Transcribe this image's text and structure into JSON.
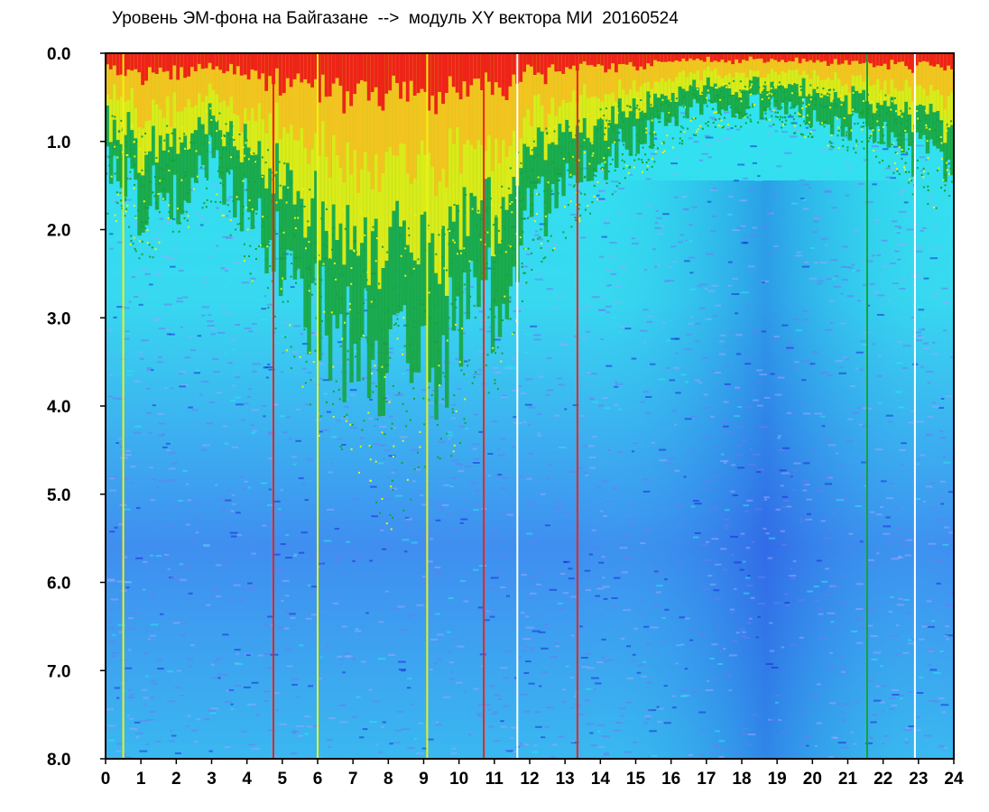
{
  "title": "Уровень ЭМ-фона на Байгазане  -->  модуль XY вектора МИ  20160524",
  "chart_data": {
    "type": "heatmap",
    "title": "Уровень ЭМ-фона на Байгазане  -->  модуль XY вектора МИ  20160524",
    "xlabel": "",
    "ylabel": "",
    "x_ticks": [
      "0",
      "1",
      "2",
      "3",
      "4",
      "5",
      "6",
      "7",
      "8",
      "9",
      "10",
      "11",
      "12",
      "13",
      "14",
      "15",
      "16",
      "17",
      "18",
      "19",
      "20",
      "21",
      "22",
      "23",
      "24"
    ],
    "y_ticks": [
      "0.0",
      "1.0",
      "2.0",
      "3.0",
      "4.0",
      "5.0",
      "6.0",
      "7.0",
      "8.0"
    ],
    "xlim": [
      0,
      24
    ],
    "ylim": [
      8.0,
      0.0
    ],
    "y_inverted": true,
    "grid": false,
    "colors": [
      "#1a2ad8",
      "#6c7cf0",
      "#9aa8ff",
      "#2ee6ee",
      "#16a336",
      "#eef214",
      "#f4c020",
      "#ee2418"
    ],
    "activity_profile": [
      {
        "hour": 0,
        "level": 1.3
      },
      {
        "hour": 1,
        "level": 1.7
      },
      {
        "hour": 2,
        "level": 1.6
      },
      {
        "hour": 3,
        "level": 1.2
      },
      {
        "hour": 4,
        "level": 1.8
      },
      {
        "hour": 5,
        "level": 2.4
      },
      {
        "hour": 6,
        "level": 3.1
      },
      {
        "hour": 7,
        "level": 3.3
      },
      {
        "hour": 8,
        "level": 3.9
      },
      {
        "hour": 9,
        "level": 3.5
      },
      {
        "hour": 10,
        "level": 3.2
      },
      {
        "hour": 11,
        "level": 2.8
      },
      {
        "hour": 12,
        "level": 1.8
      },
      {
        "hour": 13,
        "level": 1.5
      },
      {
        "hour": 14,
        "level": 1.2
      },
      {
        "hour": 15,
        "level": 1.0
      },
      {
        "hour": 16,
        "level": 0.8
      },
      {
        "hour": 17,
        "level": 0.6
      },
      {
        "hour": 18,
        "level": 0.6
      },
      {
        "hour": 19,
        "level": 0.6
      },
      {
        "hour": 20,
        "level": 0.7
      },
      {
        "hour": 21,
        "level": 0.8
      },
      {
        "hour": 22,
        "level": 0.9
      },
      {
        "hour": 23,
        "level": 1.2
      },
      {
        "hour": 24,
        "level": 1.3
      }
    ],
    "stripes": [
      {
        "hour": 0.5,
        "color": "#eef214"
      },
      {
        "hour": 4.75,
        "color": "#ee2418"
      },
      {
        "hour": 6.0,
        "color": "#eef214"
      },
      {
        "hour": 9.1,
        "color": "#eef214"
      },
      {
        "hour": 10.7,
        "color": "#ee2418"
      },
      {
        "hour": 11.65,
        "color": "#ffffff"
      },
      {
        "hour": 13.35,
        "color": "#ee2418"
      },
      {
        "hour": 21.55,
        "color": "#16a336"
      },
      {
        "hour": 22.9,
        "color": "#ffffff"
      }
    ]
  }
}
